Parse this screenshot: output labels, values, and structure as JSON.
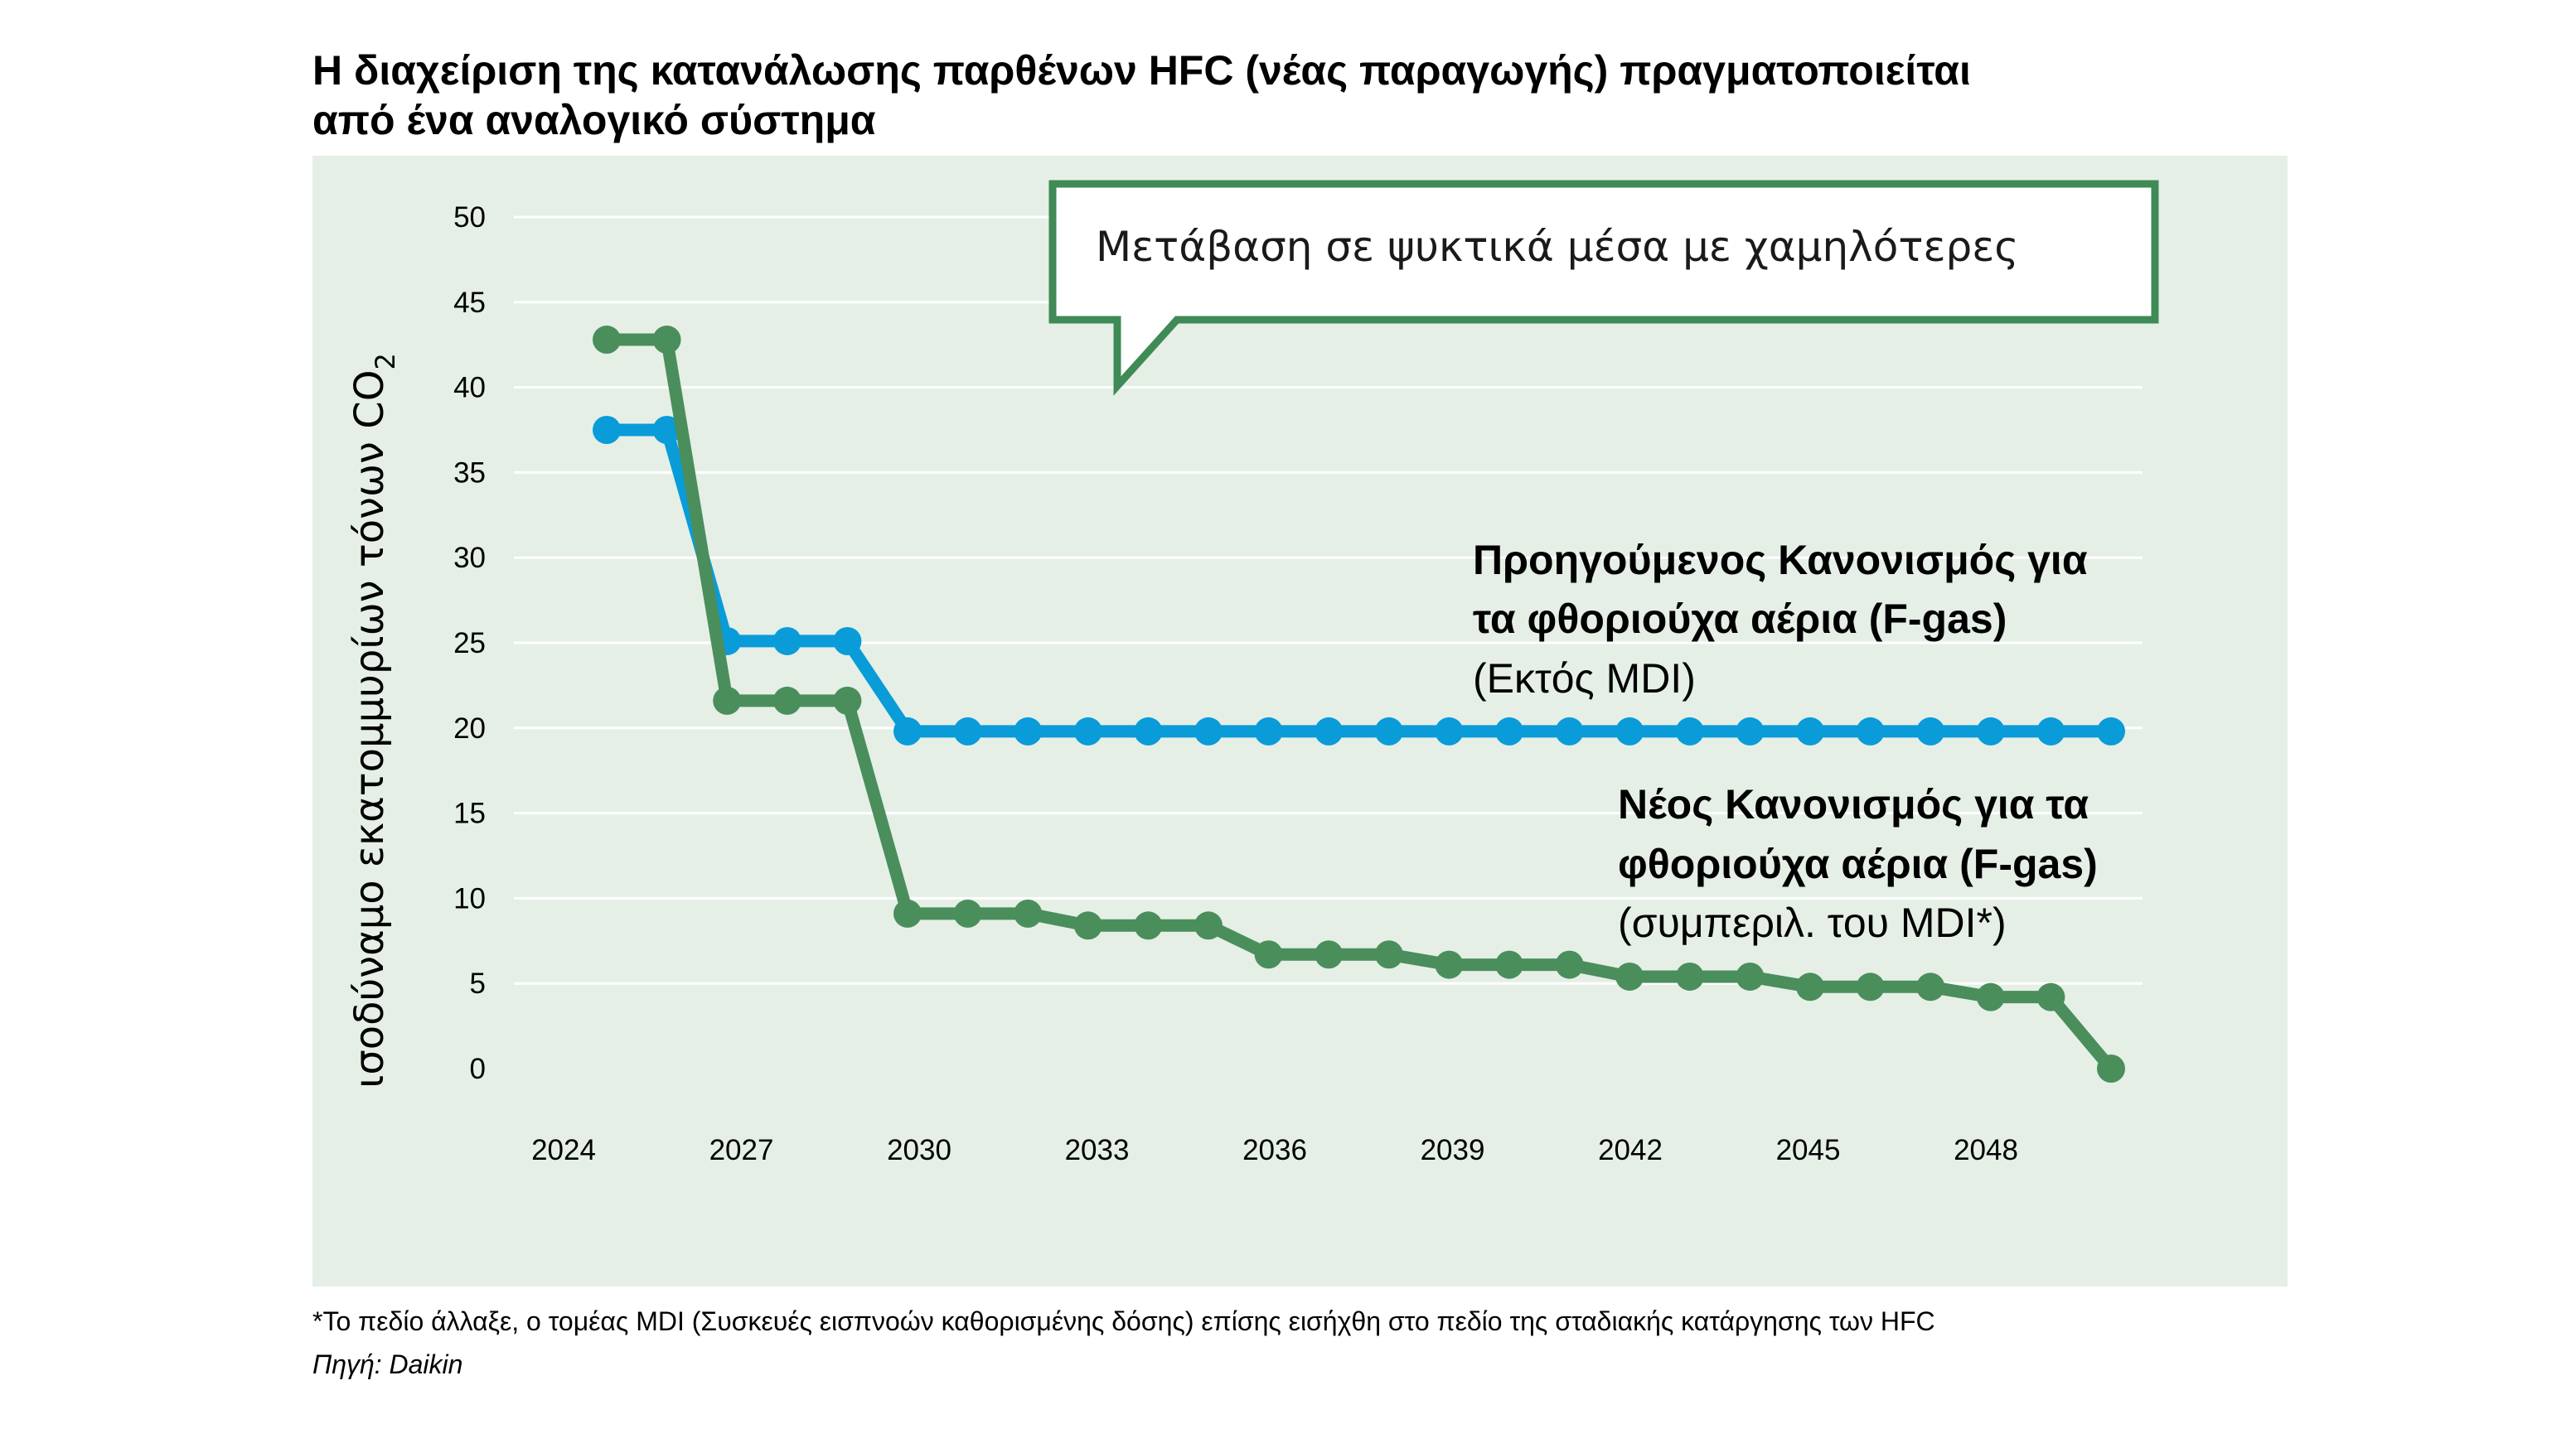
{
  "title": {
    "line1": "Η διαχείριση της κατανάλωσης παρθένων HFC (νέας παραγωγής) πραγματοποιείται",
    "line2": "από ένα αναλογικό σύστημα"
  },
  "callout": "Μετάβαση σε ψυκτικά μέσα με χαμηλότερες",
  "series_labels": {
    "previous": {
      "line1": "Προηγούμενος Κανονισμός για",
      "line2": "τα φθοριούχα αέρια (F-gas)",
      "line3": "(Εκτός MDI)"
    },
    "new": {
      "line1": "Νέος Κανονισμός για τα",
      "line2": "φθοριούχα αέρια (F-gas)",
      "line3": "(συμπεριλ. του MDI*)"
    }
  },
  "footnote": "*Το πεδίο άλλαξε, ο τομέας MDI (Συσκευές εισπνοών καθορισμένης δόσης) επίσης εισήχθη στο πεδίο της σταδιακής κατάργησης των HFC",
  "source": "Πηγή: Daikin",
  "colors": {
    "background": "#e5efe6",
    "previous": "#0a9bd9",
    "new": "#4a8e5c",
    "callout_border": "#3f8a55"
  },
  "chart_data": {
    "type": "line",
    "ylabel": "ισοδύναμο εκατομμυρίων τόνων CO",
    "ylabel_subscript": "2",
    "ylim": [
      0,
      50
    ],
    "yticks": [
      0,
      5,
      10,
      15,
      20,
      25,
      30,
      35,
      40,
      45,
      50
    ],
    "xticks": [
      2024,
      2027,
      2030,
      2033,
      2036,
      2039,
      2042,
      2045,
      2048
    ],
    "grid": true,
    "x": [
      2025,
      2026,
      2027,
      2028,
      2029,
      2030,
      2031,
      2032,
      2033,
      2034,
      2035,
      2036,
      2037,
      2038,
      2039,
      2040,
      2041,
      2042,
      2043,
      2044,
      2045,
      2046,
      2047,
      2048,
      2049,
      2050
    ],
    "series": [
      {
        "key": "previous",
        "values": [
          37.5,
          37.5,
          25.1,
          25.1,
          25.1,
          19.8,
          19.8,
          19.8,
          19.8,
          19.8,
          19.8,
          19.8,
          19.8,
          19.8,
          19.8,
          19.8,
          19.8,
          19.8,
          19.8,
          19.8,
          19.8,
          19.8,
          19.8,
          19.8,
          19.8,
          19.8
        ]
      },
      {
        "key": "new",
        "values": [
          42.8,
          42.8,
          21.6,
          21.6,
          21.6,
          9.1,
          9.1,
          9.1,
          8.4,
          8.4,
          8.4,
          6.7,
          6.7,
          6.7,
          6.1,
          6.1,
          6.1,
          5.4,
          5.4,
          5.4,
          4.8,
          4.8,
          4.8,
          4.2,
          4.2,
          0.0
        ]
      }
    ]
  }
}
